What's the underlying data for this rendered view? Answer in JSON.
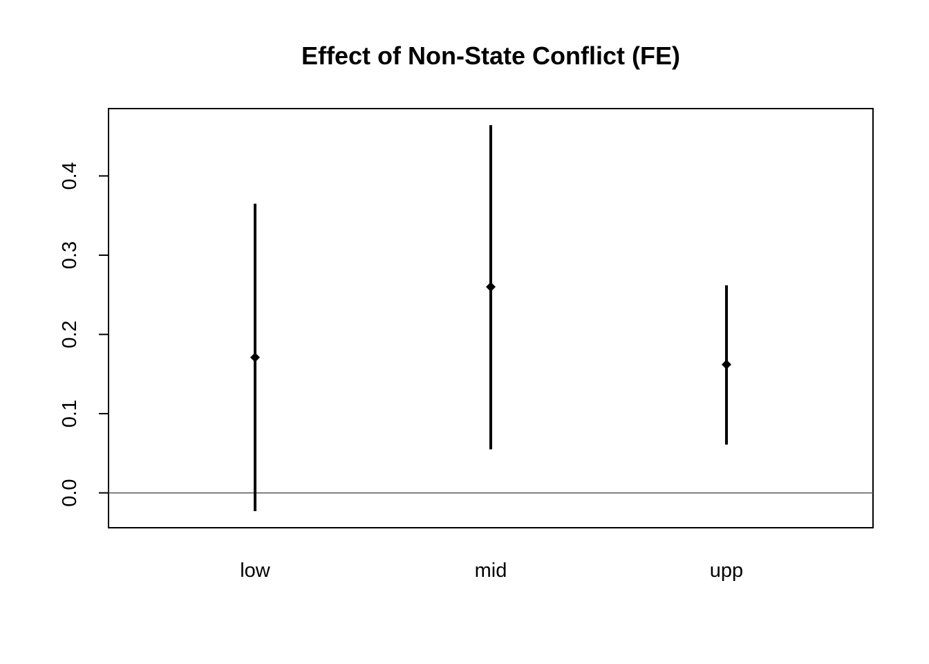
{
  "chart_data": {
    "type": "errorbar",
    "title": "Effect of Non-State Conflict (FE)",
    "xlabel": "",
    "ylabel": "",
    "categories": [
      "low",
      "mid",
      "upp"
    ],
    "estimates": [
      0.171,
      0.26,
      0.162
    ],
    "lower": [
      -0.023,
      0.055,
      0.061
    ],
    "upper": [
      0.365,
      0.464,
      0.262
    ],
    "yticks": [
      0.0,
      0.1,
      0.2,
      0.3,
      0.4
    ],
    "ytick_labels": [
      "0.0",
      "0.1",
      "0.2",
      "0.3",
      "0.4"
    ],
    "ylim": [
      -0.044,
      0.485
    ],
    "reference_line": 0.0,
    "grid": false,
    "colors": {
      "marks": "#000000",
      "reference_line": "#555555",
      "frame": "#000000"
    }
  }
}
